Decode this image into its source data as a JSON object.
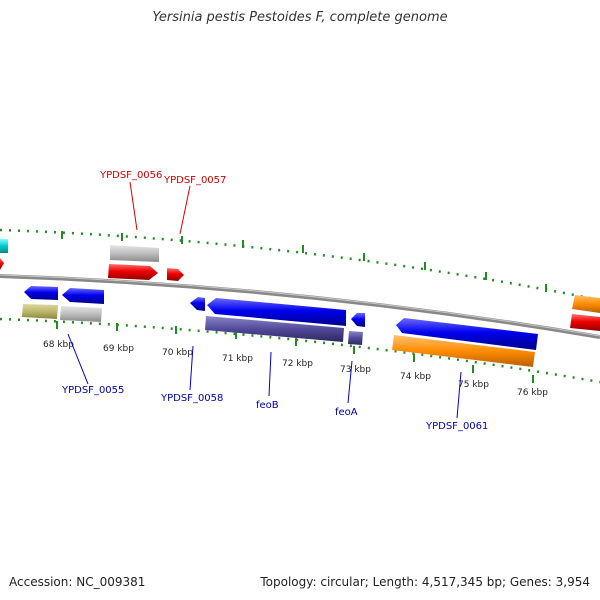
{
  "title": "Yersinia pestis Pestoides F, complete genome",
  "accession_text": "Accession: NC_009381",
  "topology_text": "Topology: circular; Length: 4,517,345 bp; Genes: 3,954",
  "ticks": [
    "68 kbp",
    "69 kbp",
    "70 kbp",
    "71 kbp",
    "72 kbp",
    "73 kbp",
    "74 kbp",
    "75 kbp",
    "76 kbp"
  ],
  "genes_top": [
    "YPDSF_0056",
    "YPDSF_0057"
  ],
  "genes_bottom": [
    "YPDSF_0055",
    "YPDSF_0058",
    "feoB",
    "feoA",
    "YPDSF_0061"
  ],
  "colors": {
    "forward_cds": "#ff0000",
    "reverse_cds": "#0000ff",
    "gene_gray": "#bbbbbb",
    "gene_olive": "#bdb76b",
    "gene_purple": "#483d8b",
    "gene_orange": "#ff8c00",
    "gene_cyan": "#00cccc",
    "backbone": "#888888",
    "tick": "#228b22",
    "label_top": "#cc0000",
    "label_bottom": "#0000aa"
  }
}
